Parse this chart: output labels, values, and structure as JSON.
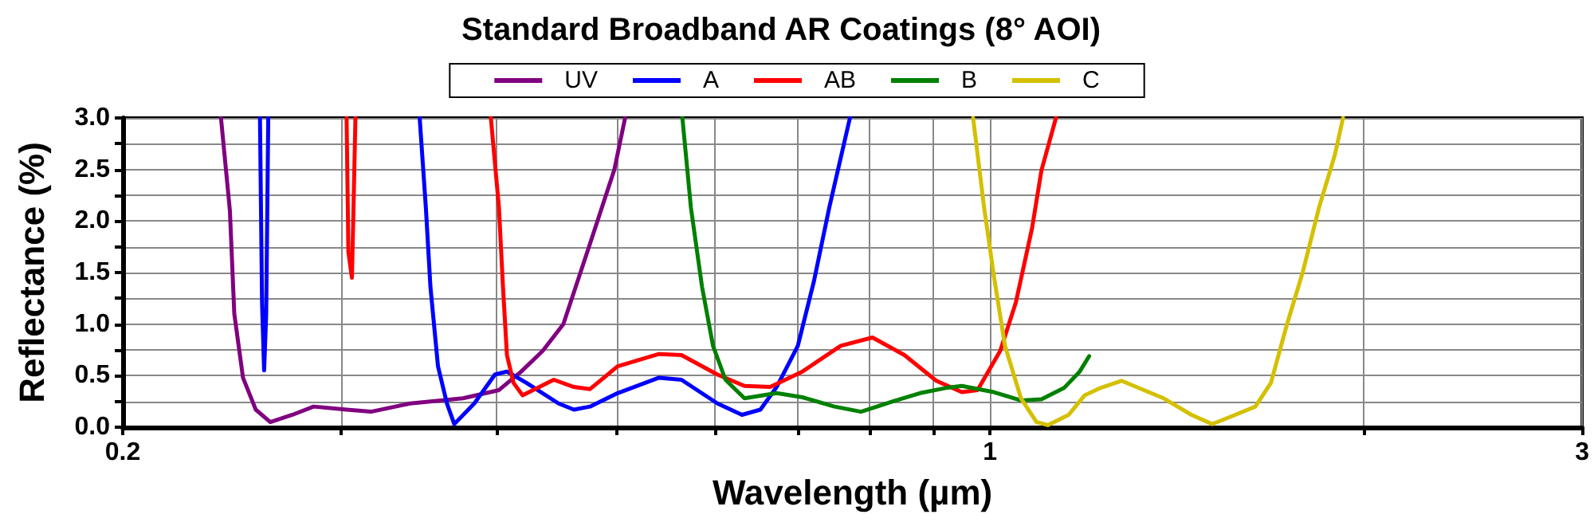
{
  "chart_data": {
    "type": "line",
    "title": "Standard Broadband AR Coatings (8° AOI)",
    "xlabel": "Wavelength (µm)",
    "ylabel": "Reflectance (%)",
    "log": "x",
    "xlim": [
      0.2,
      3
    ],
    "ylim": [
      0,
      3
    ],
    "xticks": [
      {
        "value": 0.2,
        "label": "0.2"
      },
      {
        "value": 0.3,
        "label": null
      },
      {
        "value": 0.4,
        "label": null
      },
      {
        "value": 0.5,
        "label": null
      },
      {
        "value": 0.6,
        "label": null
      },
      {
        "value": 0.7,
        "label": null
      },
      {
        "value": 0.8,
        "label": null
      },
      {
        "value": 0.9,
        "label": null
      },
      {
        "value": 1,
        "label": "1"
      },
      {
        "value": 2,
        "label": null
      },
      {
        "value": 3,
        "label": "3"
      }
    ],
    "yticks": [
      {
        "value": 0,
        "label": "0.0"
      },
      {
        "value": 0.25,
        "label": null
      },
      {
        "value": 0.5,
        "label": "0.5"
      },
      {
        "value": 0.75,
        "label": null
      },
      {
        "value": 1,
        "label": "1.0"
      },
      {
        "value": 1.25,
        "label": null
      },
      {
        "value": 1.5,
        "label": "1.5"
      },
      {
        "value": 1.75,
        "label": null
      },
      {
        "value": 2,
        "label": "2.0"
      },
      {
        "value": 2.25,
        "label": null
      },
      {
        "value": 2.5,
        "label": "2.5"
      },
      {
        "value": 2.75,
        "label": null
      },
      {
        "value": 3,
        "label": "3.0"
      }
    ],
    "grid": true,
    "legend": "top",
    "marker": "none",
    "line_style": "solid",
    "series": [
      {
        "name": "UV",
        "color": "#800080",
        "x": [
          0.24,
          0.244,
          0.246,
          0.25,
          0.256,
          0.263,
          0.274,
          0.285,
          0.303,
          0.317,
          0.341,
          0.376,
          0.402,
          0.419,
          0.436,
          0.453,
          0.476,
          0.498,
          0.508
        ],
        "values": [
          3.0,
          2.1,
          1.1,
          0.48,
          0.17,
          0.05,
          0.12,
          0.2,
          0.17,
          0.15,
          0.23,
          0.28,
          0.36,
          0.54,
          0.74,
          1.0,
          1.78,
          2.5,
          3.0
        ]
      },
      {
        "name": "A",
        "color": "#0000ff",
        "x": [
          0.258,
          0.259,
          0.26,
          0.261,
          0.262,
          0.3,
          0.347,
          0.351,
          0.354,
          0.359,
          0.365,
          0.37,
          0.384,
          0.399,
          0.408,
          0.423,
          0.449,
          0.462,
          0.476,
          0.501,
          0.541,
          0.564,
          0.603,
          0.631,
          0.653,
          0.673,
          0.7,
          0.721,
          0.742,
          0.771
        ],
        "values": [
          3.0,
          1.2,
          0.55,
          1.1,
          3.0,
          null,
          3.0,
          2.13,
          1.36,
          0.59,
          0.23,
          0.03,
          0.23,
          0.51,
          0.54,
          0.43,
          0.23,
          0.17,
          0.2,
          0.33,
          0.48,
          0.46,
          0.23,
          0.12,
          0.17,
          0.39,
          0.79,
          1.41,
          2.13,
          3.0
        ]
      },
      {
        "name": "AB",
        "color": "#ff0000",
        "x": [
          0.303,
          0.304,
          0.306,
          0.307,
          0.308,
          0.35,
          0.396,
          0.402,
          0.405,
          0.408,
          0.413,
          0.42,
          0.445,
          0.462,
          0.476,
          0.501,
          0.541,
          0.564,
          0.603,
          0.634,
          0.665,
          0.706,
          0.758,
          0.804,
          0.853,
          0.905,
          0.949,
          0.977,
          1.019,
          1.049,
          1.081,
          1.1,
          1.13
        ],
        "values": [
          3.0,
          1.7,
          1.45,
          2.2,
          3.0,
          null,
          3.0,
          2.13,
          1.36,
          0.7,
          0.43,
          0.31,
          0.46,
          0.39,
          0.37,
          0.59,
          0.71,
          0.7,
          0.51,
          0.4,
          0.39,
          0.54,
          0.79,
          0.87,
          0.7,
          0.45,
          0.34,
          0.36,
          0.74,
          1.21,
          1.93,
          2.49,
          3.0
        ]
      },
      {
        "name": "B",
        "color": "#008000",
        "x": [
          0.565,
          0.574,
          0.586,
          0.598,
          0.612,
          0.634,
          0.673,
          0.706,
          0.749,
          0.787,
          0.835,
          0.878,
          0.921,
          0.949,
          1.007,
          1.059,
          1.1,
          1.147,
          1.181,
          1.202
        ],
        "values": [
          3.0,
          2.13,
          1.36,
          0.79,
          0.46,
          0.28,
          0.33,
          0.29,
          0.2,
          0.15,
          0.25,
          0.33,
          0.38,
          0.4,
          0.34,
          0.26,
          0.27,
          0.38,
          0.54,
          0.69
        ]
      },
      {
        "name": "C",
        "color": "#d4c000",
        "x": [
          0.969,
          0.989,
          1.007,
          1.028,
          1.059,
          1.09,
          1.113,
          1.157,
          1.192,
          1.227,
          1.276,
          1.38,
          1.453,
          1.51,
          1.569,
          1.636,
          1.684,
          1.735,
          1.787,
          1.841,
          1.896,
          1.925
        ],
        "values": [
          3.0,
          2.13,
          1.47,
          0.79,
          0.28,
          0.05,
          0.02,
          0.12,
          0.31,
          0.38,
          0.45,
          0.28,
          0.12,
          0.03,
          0.11,
          0.2,
          0.43,
          1.0,
          1.51,
          2.13,
          2.64,
          3.0
        ]
      }
    ]
  }
}
